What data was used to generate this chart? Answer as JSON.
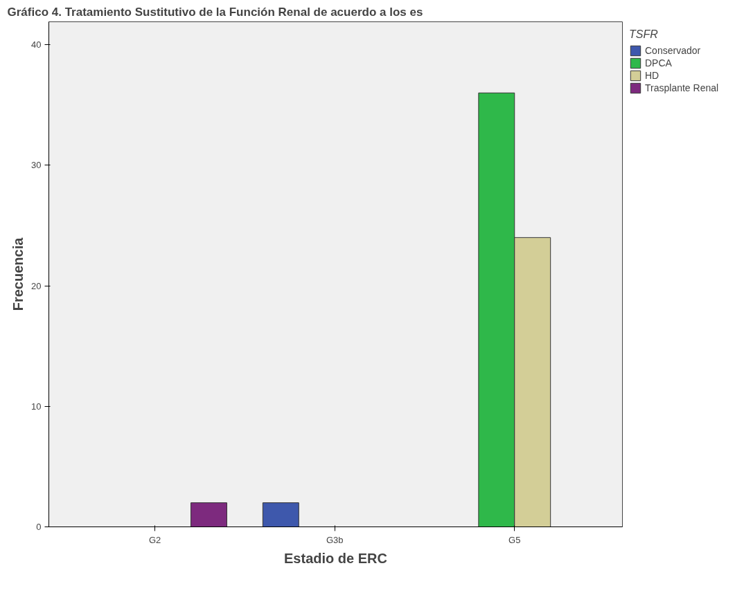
{
  "chart_data": {
    "type": "bar",
    "title": "Gráfico 4. Tratamiento Sustitutivo de la Función Renal de acuerdo a los es",
    "xlabel": "Estadio de ERC",
    "ylabel": "Frecuencia",
    "legend_title": "TSFR",
    "categories": [
      "G2",
      "G3b",
      "G5"
    ],
    "series": [
      {
        "name": "Conservador",
        "color": "#3e58ac",
        "values": [
          null,
          2,
          null
        ]
      },
      {
        "name": "DPCA",
        "color": "#2fb84a",
        "values": [
          null,
          null,
          36
        ]
      },
      {
        "name": "HD",
        "color": "#d3ce97",
        "values": [
          null,
          null,
          24
        ]
      },
      {
        "name": "Trasplante Renal",
        "color": "#7d2a7e",
        "values": [
          2,
          null,
          null
        ]
      }
    ],
    "ylim": [
      0,
      41.9
    ],
    "yticks": [
      0,
      10,
      20,
      30,
      40
    ],
    "grid": false,
    "legend": "right"
  }
}
